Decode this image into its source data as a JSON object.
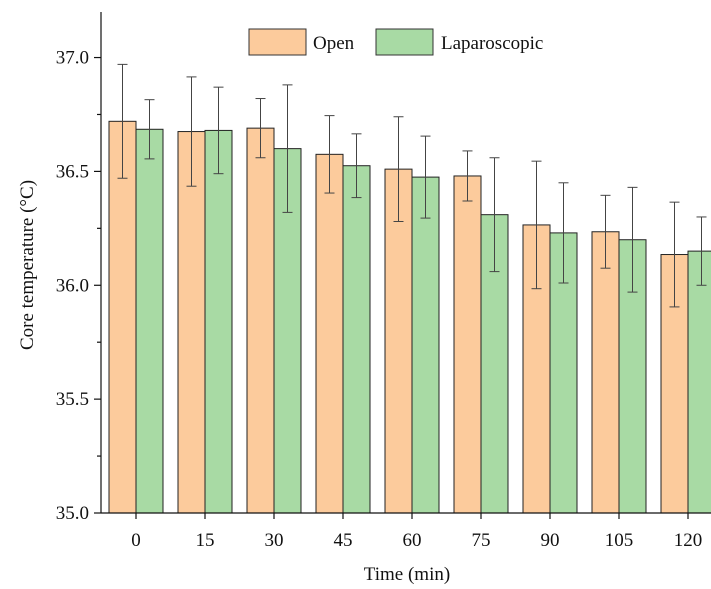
{
  "chart_data": {
    "type": "bar",
    "categories": [
      "0",
      "15",
      "30",
      "45",
      "60",
      "75",
      "90",
      "105",
      "120"
    ],
    "series": [
      {
        "name": "Open",
        "color": "#FCCB9C",
        "values": [
          36.72,
          36.675,
          36.69,
          36.575,
          36.51,
          36.48,
          36.265,
          36.235,
          36.135
        ],
        "errors": [
          0.25,
          0.24,
          0.13,
          0.17,
          0.23,
          0.11,
          0.28,
          0.16,
          0.23
        ]
      },
      {
        "name": "Laparoscopic",
        "color": "#A8DAA4",
        "values": [
          36.685,
          36.68,
          36.6,
          36.525,
          36.475,
          36.31,
          36.23,
          36.2,
          36.15
        ],
        "errors": [
          0.13,
          0.19,
          0.28,
          0.14,
          0.18,
          0.25,
          0.22,
          0.23,
          0.15
        ]
      }
    ],
    "xlabel": "Time (min)",
    "ylabel": "Core temperature (°C)",
    "ylim": [
      35.0,
      37.2
    ],
    "yticks": [
      "35.0",
      "35.5",
      "36.0",
      "36.5",
      "37.0"
    ],
    "legend": "top-center",
    "grid": false
  }
}
